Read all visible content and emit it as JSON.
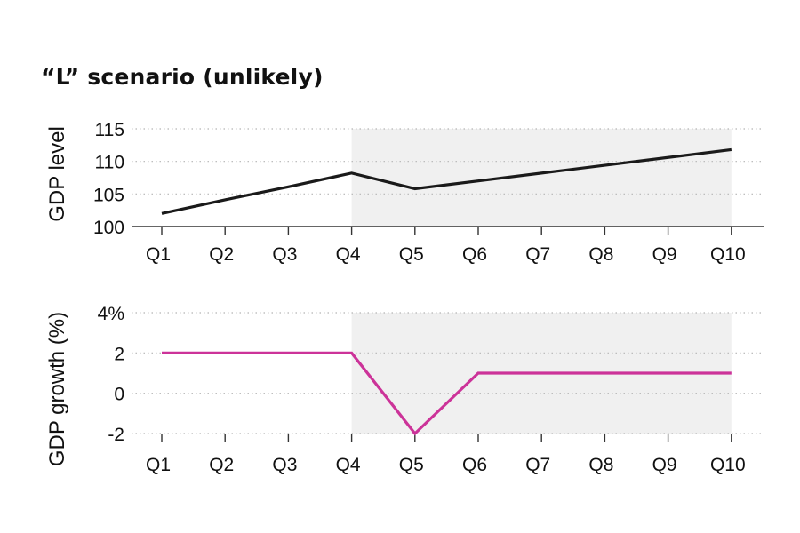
{
  "chart_data": [
    {
      "type": "line",
      "title": "“L” scenario (unlikely)",
      "ylabel": "GDP level",
      "x": [
        "Q1",
        "Q2",
        "Q3",
        "Q4",
        "Q5",
        "Q6",
        "Q7",
        "Q8",
        "Q9",
        "Q10"
      ],
      "ylim": [
        100,
        115
      ],
      "yticks": [
        {
          "value": 100,
          "label": "100"
        },
        {
          "value": 105,
          "label": "105"
        },
        {
          "value": 110,
          "label": "110"
        },
        {
          "value": 115,
          "label": "115"
        }
      ],
      "series": [
        {
          "color": "#1a1a1a",
          "values": [
            102.0,
            104.1,
            106.1,
            108.2,
            105.8,
            107.0,
            108.2,
            109.4,
            110.6,
            111.8
          ]
        }
      ],
      "shaded_region": {
        "from": "Q4",
        "to": "Q10"
      },
      "grid": "dotted horizontal"
    },
    {
      "type": "line",
      "ylabel": "GDP growth (%)",
      "x": [
        "Q1",
        "Q2",
        "Q3",
        "Q4",
        "Q5",
        "Q6",
        "Q7",
        "Q8",
        "Q9",
        "Q10"
      ],
      "ylim": [
        -2,
        4
      ],
      "yticks": [
        {
          "value": -2,
          "label": "-2"
        },
        {
          "value": 0,
          "label": "0"
        },
        {
          "value": 2,
          "label": "2"
        },
        {
          "value": 4,
          "label": "4%"
        }
      ],
      "series": [
        {
          "color": "#cc3399",
          "values": [
            2,
            2,
            2,
            2,
            -2,
            1,
            1,
            1,
            1,
            1
          ]
        }
      ],
      "shaded_region": {
        "from": "Q4",
        "to": "Q10"
      },
      "grid": "dotted horizontal"
    }
  ],
  "colors": {
    "shade": "#f0f0f0",
    "axis": "#333333",
    "grid": "#b5b5b5"
  }
}
